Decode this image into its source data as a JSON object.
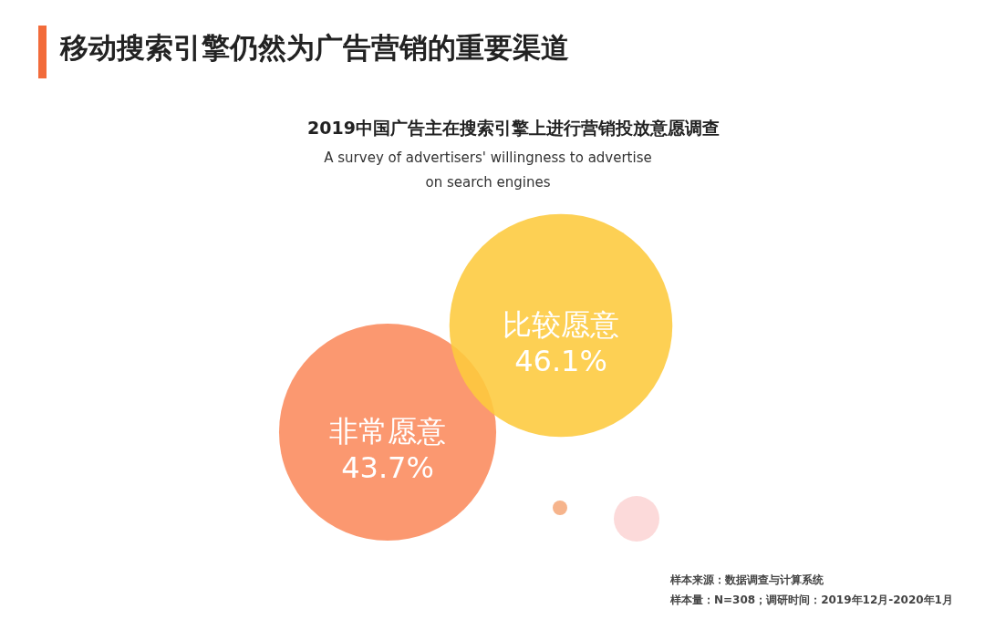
{
  "chart_data": {
    "type": "other",
    "title": "移动搜索引擎仍然为广告营销的重要渠道",
    "subtitle": "2019中国广告主在搜索引擎上进行营销投放意愿调查",
    "annotations": [
      "A survey of advertisers' willingness to advertise on search engines",
      "样本来源：数据调查与计算系统",
      "样本量：N=308；调研时间：2019年12月-2020年1月"
    ],
    "categories": [
      "非常愿意",
      "比较愿意",
      null,
      null
    ],
    "values": [
      43.7,
      46.1,
      null,
      null
    ],
    "value_labels": [
      "43.7%",
      "46.1%",
      null,
      null
    ],
    "colors": [
      "#fa8a5c",
      "#fdc93c",
      "#f6b48c",
      "#fcdada"
    ]
  }
}
